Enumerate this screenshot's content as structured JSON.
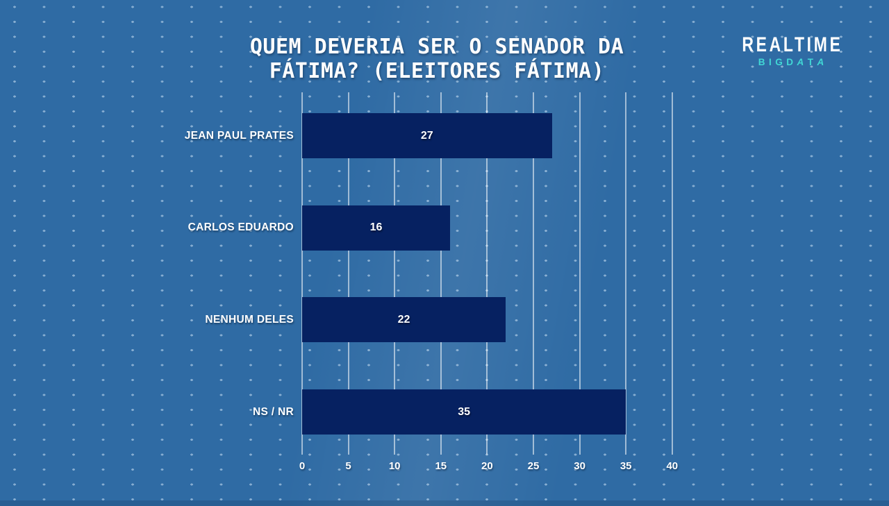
{
  "logo": {
    "line1": "REALTIME",
    "line2_parts": {
      "p1": "BIGD",
      "p2": "A",
      "p3": "T",
      "p4": "A"
    }
  },
  "chart_data": {
    "type": "bar",
    "orientation": "horizontal",
    "title": "QUEM DEVERIA SER O SENADOR DA FÁTIMA? (ELEITORES FÁTIMA)",
    "categories": [
      "JEAN PAUL PRATES",
      "CARLOS EDUARDO",
      "NENHUM DELES",
      "NS / NR"
    ],
    "values": [
      27,
      16,
      22,
      35
    ],
    "xlim": [
      0,
      40
    ],
    "xticks": [
      0,
      5,
      10,
      15,
      20,
      25,
      30,
      35,
      40
    ],
    "grid": true,
    "legend_position": "none",
    "colors": {
      "bar": "#062161",
      "background": "#2f6ba4",
      "gridline": "#ffffff",
      "text": "#ffffff",
      "logo_accent": "#41d8d5"
    }
  }
}
